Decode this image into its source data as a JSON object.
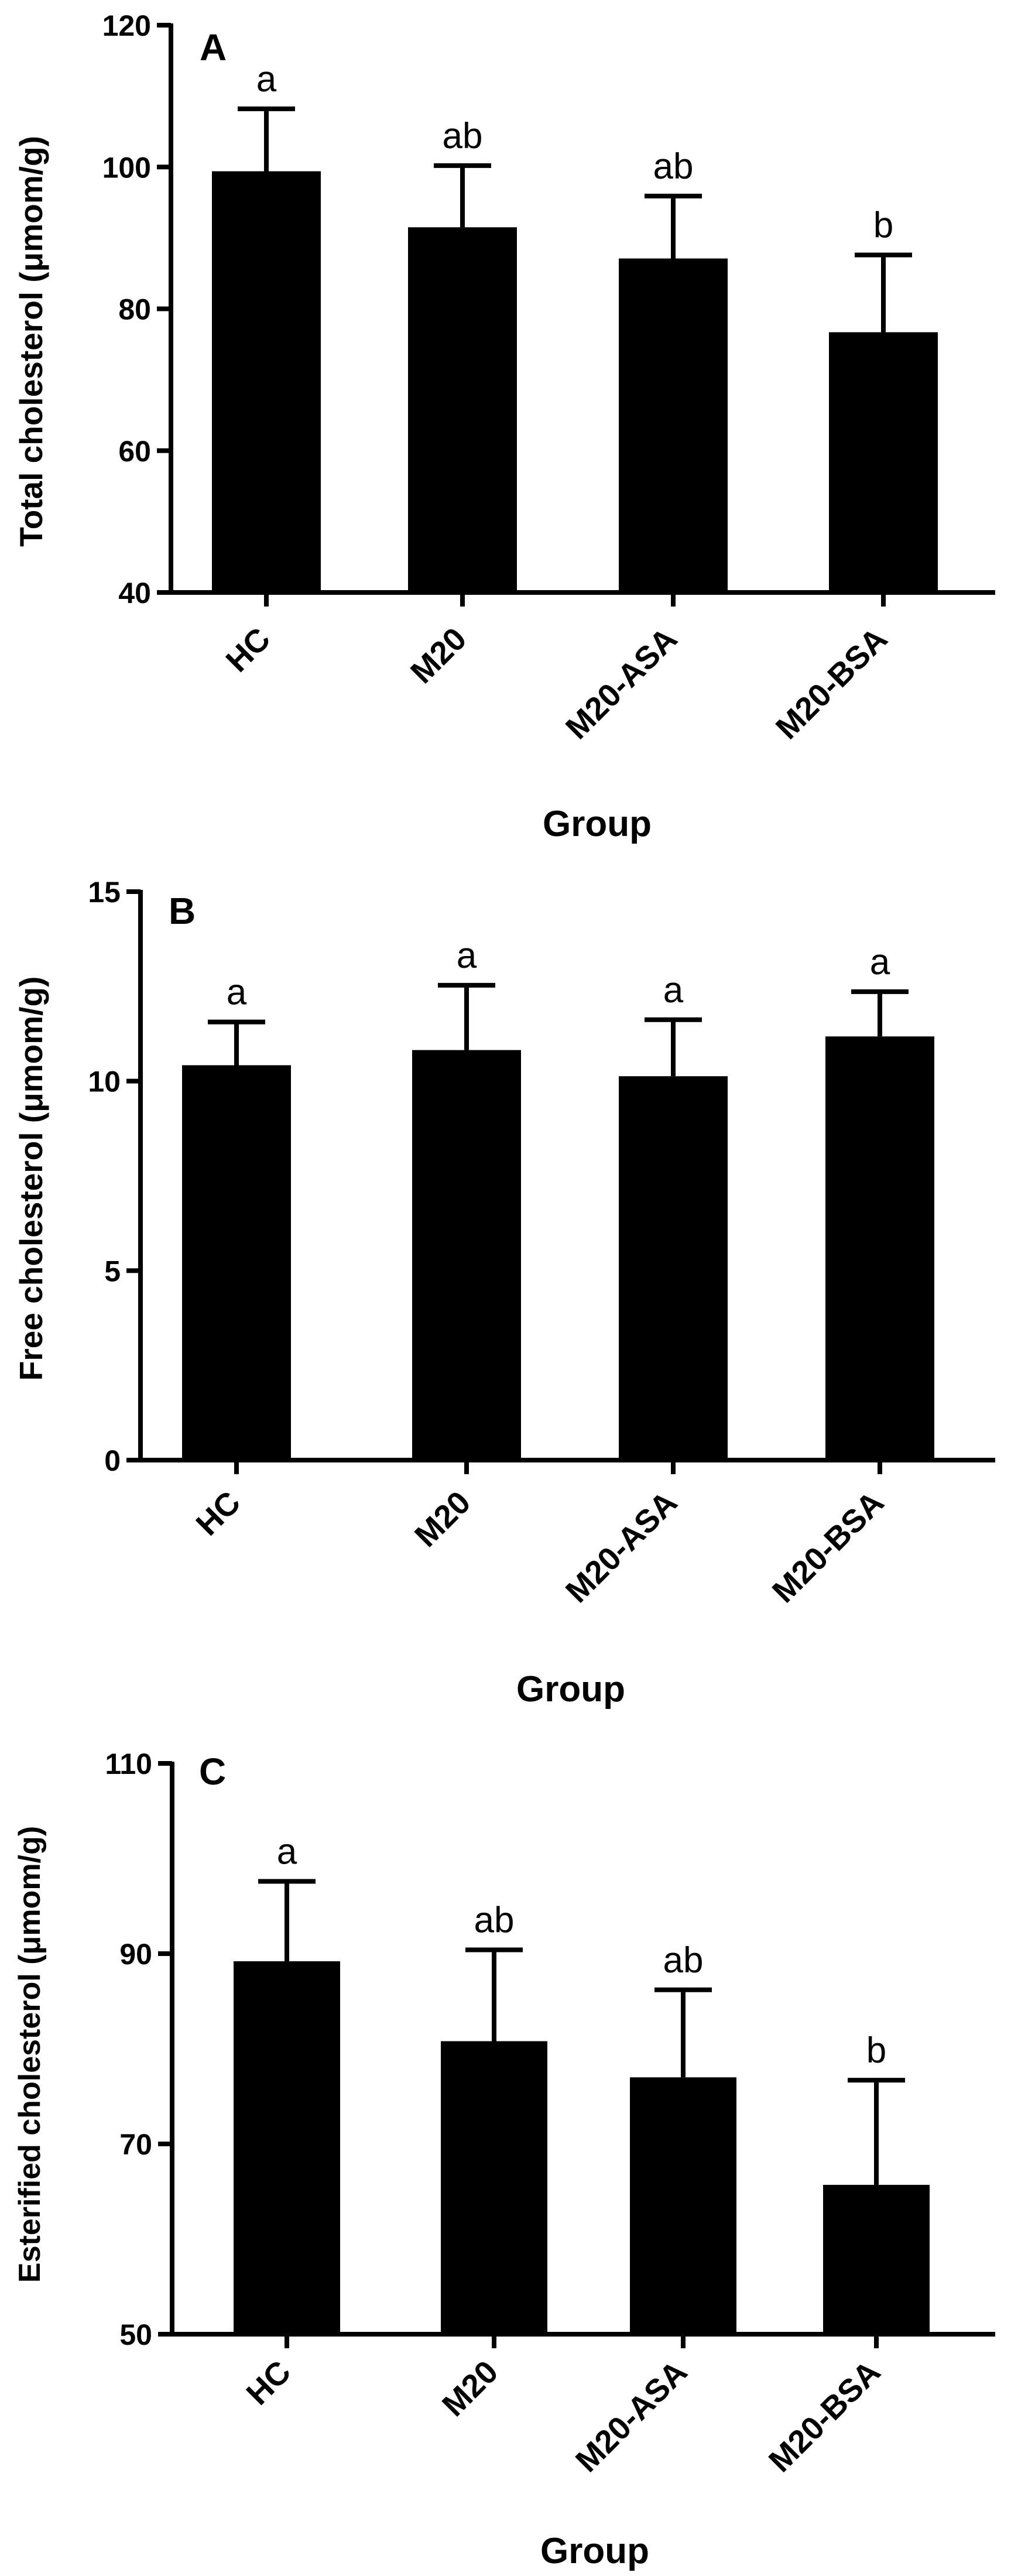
{
  "chart_data": [
    {
      "type": "bar",
      "panel": "A",
      "ylabel": "Total cholesterol (μmom/g)",
      "xlabel": "Group",
      "categories": [
        "HC",
        "M20",
        "M20-ASA",
        "M20-BSA"
      ],
      "values": [
        99.4,
        91.5,
        87.1,
        76.7
      ],
      "error_upper": [
        108.2,
        100.2,
        95.9,
        87.6
      ],
      "letters": [
        "a",
        "ab",
        "ab",
        "b"
      ],
      "ylim": [
        40,
        120
      ],
      "yticks": [
        "40",
        "60",
        "80",
        "100",
        "120"
      ],
      "grid": false,
      "bar_color": "#000000"
    },
    {
      "type": "bar",
      "panel": "B",
      "ylabel": "Free cholesterol (μmom/g)",
      "xlabel": "Group",
      "categories": [
        "HC",
        "M20",
        "M20-ASA",
        "M20-BSA"
      ],
      "values": [
        10.42,
        10.82,
        10.13,
        11.18
      ],
      "error_upper": [
        11.56,
        12.53,
        11.62,
        12.36
      ],
      "letters": [
        "a",
        "a",
        "a",
        "a"
      ],
      "ylim": [
        0,
        15
      ],
      "yticks": [
        "0",
        "5",
        "10",
        "15"
      ],
      "grid": false,
      "bar_color": "#000000"
    },
    {
      "type": "bar",
      "panel": "C",
      "ylabel": "Esterified cholesterol (μmom/g)",
      "xlabel": "Group",
      "categories": [
        "HC",
        "M20",
        "M20-ASA",
        "M20-BSA"
      ],
      "values": [
        89.2,
        80.8,
        77.0,
        65.7
      ],
      "error_upper": [
        97.6,
        90.4,
        86.2,
        76.7
      ],
      "letters": [
        "a",
        "ab",
        "ab",
        "b"
      ],
      "ylim": [
        50,
        110
      ],
      "yticks": [
        "50",
        "70",
        "90",
        "110"
      ],
      "grid": false,
      "bar_color": "#000000"
    }
  ]
}
